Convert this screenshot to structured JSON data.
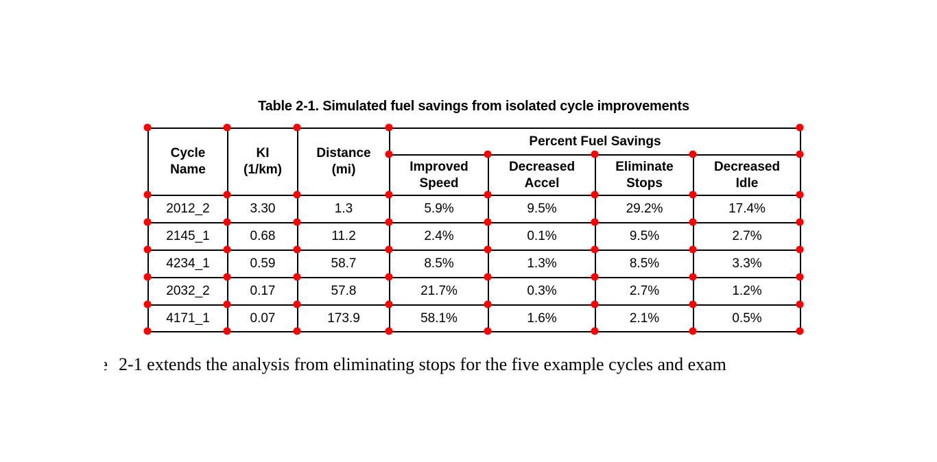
{
  "caption": "Table 2-1. Simulated fuel savings from isolated cycle improvements",
  "table": {
    "header": {
      "cycle_name": "Cycle\nName",
      "ki": "KI\n(1/km)",
      "distance": "Distance\n(mi)",
      "group": "Percent Fuel Savings",
      "improved_speed": "Improved\nSpeed",
      "decreased_accel": "Decreased\nAccel",
      "eliminate_stops": "Eliminate\nStops",
      "decreased_idle": "Decreased\nIdle"
    },
    "rows": [
      [
        "2012_2",
        "3.30",
        "1.3",
        "5.9%",
        "9.5%",
        "29.2%",
        "17.4%"
      ],
      [
        "2145_1",
        "0.68",
        "11.2",
        "2.4%",
        "0.1%",
        "9.5%",
        "2.7%"
      ],
      [
        "4234_1",
        "0.59",
        "58.7",
        "8.5%",
        "1.3%",
        "8.5%",
        "3.3%"
      ],
      [
        "2032_2",
        "0.17",
        "57.8",
        "21.7%",
        "0.3%",
        "2.7%",
        "1.2%"
      ],
      [
        "4171_1",
        "0.07",
        "173.9",
        "58.1%",
        "1.6%",
        "2.1%",
        "0.5%"
      ]
    ]
  },
  "annotation": {
    "dot_color": "#ff0000"
  },
  "body_text": {
    "fragment": "e",
    "text": "2-1 extends the analysis from eliminating stops for the five example cycles and exam"
  }
}
